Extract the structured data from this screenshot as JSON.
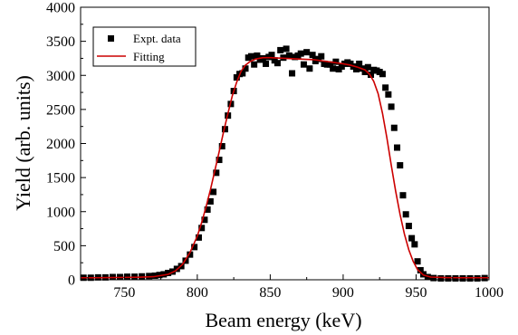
{
  "chart_data": {
    "type": "scatter",
    "title": "",
    "xlabel": "Beam energy (keV)",
    "ylabel": "Yield (arb. units)",
    "xlim": [
      720,
      1000
    ],
    "ylim": [
      0,
      4000
    ],
    "xticks": [
      750,
      800,
      850,
      900,
      950,
      1000
    ],
    "yticks": [
      0,
      500,
      1000,
      1500,
      2000,
      2500,
      3000,
      3500,
      4000
    ],
    "grid": false,
    "legend_position": "top-left",
    "series": [
      {
        "name": "Expt. data",
        "kind": "scatter",
        "marker": "square",
        "color": "#000000",
        "x": [
          722,
          727,
          732,
          737,
          742,
          747,
          752,
          757,
          762,
          767,
          771,
          774,
          777,
          780,
          783,
          786,
          789,
          792,
          795,
          798,
          801,
          803,
          805,
          807,
          809,
          811,
          813,
          815,
          817,
          819,
          821,
          823,
          825,
          827,
          829,
          831,
          833,
          835,
          837,
          839,
          841,
          843,
          845,
          847,
          849,
          851,
          853,
          855,
          857,
          859,
          861,
          863,
          865,
          867,
          869,
          871,
          873,
          875,
          877,
          879,
          881,
          883,
          885,
          887,
          889,
          891,
          893,
          895,
          897,
          899,
          901,
          903,
          905,
          907,
          909,
          911,
          913,
          915,
          917,
          919,
          921,
          923,
          925,
          927,
          929,
          931,
          933,
          935,
          937,
          939,
          941,
          943,
          945,
          947,
          949,
          951,
          953,
          955,
          958,
          962,
          967,
          972,
          977,
          982,
          987,
          992,
          997
        ],
        "y": [
          30,
          30,
          35,
          35,
          40,
          40,
          45,
          45,
          50,
          55,
          60,
          70,
          80,
          100,
          120,
          160,
          200,
          280,
          370,
          480,
          620,
          760,
          880,
          1030,
          1150,
          1290,
          1570,
          1760,
          1960,
          2210,
          2410,
          2580,
          2770,
          2970,
          3020,
          3030,
          3100,
          3260,
          3280,
          3160,
          3290,
          3230,
          3250,
          3170,
          3270,
          3300,
          3220,
          3180,
          3370,
          3260,
          3390,
          3290,
          3030,
          3270,
          3290,
          3320,
          3160,
          3340,
          3100,
          3300,
          3210,
          3240,
          3280,
          3170,
          3160,
          3160,
          3100,
          3200,
          3090,
          3130,
          3170,
          3190,
          3170,
          3130,
          3090,
          3170,
          3100,
          3050,
          3120,
          3010,
          3080,
          3070,
          3050,
          3020,
          2820,
          2720,
          2540,
          2230,
          1940,
          1680,
          1240,
          960,
          790,
          610,
          520,
          270,
          140,
          80,
          40,
          25,
          20,
          20,
          20,
          20,
          20,
          20,
          25
        ]
      },
      {
        "name": "Fitting",
        "kind": "line",
        "color": "#cc0000",
        "x": [
          720,
          730,
          740,
          750,
          760,
          770,
          780,
          785,
          790,
          795,
          800,
          803,
          806,
          809,
          812,
          815,
          818,
          821,
          824,
          827,
          830,
          833,
          836,
          840,
          845,
          850,
          860,
          870,
          880,
          890,
          900,
          905,
          910,
          915,
          918,
          921,
          924,
          927,
          930,
          933,
          936,
          939,
          942,
          945,
          948,
          951,
          955,
          960,
          970,
          980,
          990,
          1000
        ],
        "y": [
          30,
          30,
          32,
          35,
          38,
          45,
          80,
          130,
          230,
          400,
          640,
          840,
          1070,
          1320,
          1600,
          1880,
          2170,
          2440,
          2700,
          2900,
          3060,
          3150,
          3200,
          3240,
          3260,
          3260,
          3250,
          3240,
          3230,
          3200,
          3170,
          3150,
          3120,
          3080,
          3020,
          2910,
          2730,
          2440,
          2080,
          1680,
          1300,
          960,
          670,
          440,
          270,
          150,
          70,
          40,
          32,
          30,
          30,
          30
        ]
      }
    ]
  }
}
